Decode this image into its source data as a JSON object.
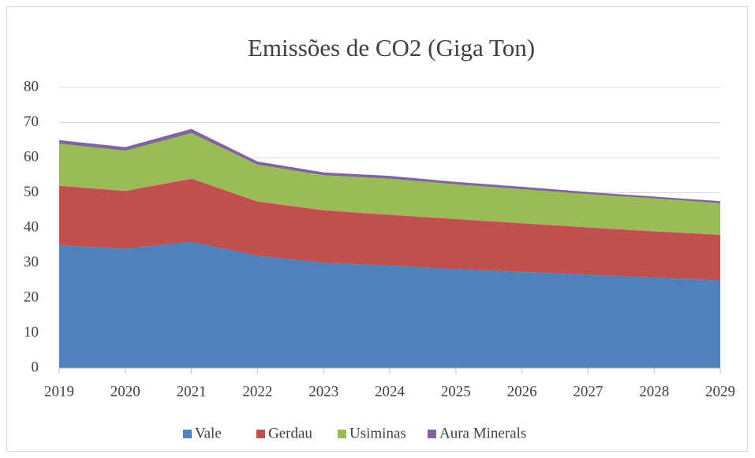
{
  "chart_data": {
    "type": "stacked_area",
    "title": "Emissões de CO2 (Giga Ton)",
    "categories": [
      "2019",
      "2020",
      "2021",
      "2022",
      "2023",
      "2024",
      "2025",
      "2026",
      "2027",
      "2028",
      "2029"
    ],
    "series": [
      {
        "name": "Vale",
        "color": "#4f81bd",
        "values": [
          35,
          34,
          36,
          32,
          30,
          29.2,
          28.2,
          27.4,
          26.6,
          25.8,
          25
        ]
      },
      {
        "name": "Gerdau",
        "color": "#c0504d",
        "values": [
          17,
          16.5,
          18,
          15.5,
          15,
          14.5,
          14.3,
          13.9,
          13.5,
          13.2,
          13
        ]
      },
      {
        "name": "Usiminas",
        "color": "#9bbb59",
        "values": [
          12,
          11.5,
          13,
          10.5,
          10,
          10.3,
          9.9,
          9.7,
          9.5,
          9.4,
          9
        ]
      },
      {
        "name": "Aura Minerals",
        "color": "#8064a2",
        "values": [
          1,
          1,
          1.2,
          0.9,
          0.8,
          0.8,
          0.7,
          0.7,
          0.6,
          0.5,
          0.6
        ]
      }
    ],
    "ylim": [
      0,
      80
    ],
    "yticks": [
      0,
      10,
      20,
      30,
      40,
      50,
      60,
      70,
      80
    ],
    "grid": true,
    "legend": "bottom"
  }
}
